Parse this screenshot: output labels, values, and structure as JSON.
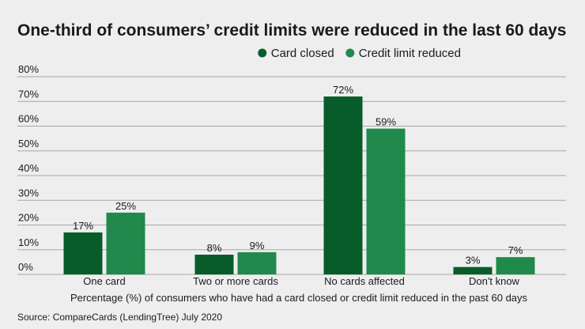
{
  "chart_data": {
    "type": "bar",
    "title": "One-third of consumers’ credit limits were reduced in the last 60 days",
    "categories": [
      "One card",
      "Two or more cards",
      "No cards affected",
      "Don't know"
    ],
    "series": [
      {
        "name": "Card closed",
        "values": [
          17,
          8,
          72,
          3
        ],
        "color": "#075c2a"
      },
      {
        "name": "Credit limit reduced",
        "values": [
          25,
          9,
          59,
          7
        ],
        "color": "#22894c"
      }
    ],
    "data_labels": [
      [
        "17%",
        "8%",
        "72%",
        "3%"
      ],
      [
        "25%",
        "9%",
        "59%",
        "7%"
      ]
    ],
    "ylim": [
      0,
      80
    ],
    "yticks": [
      0,
      10,
      20,
      30,
      40,
      50,
      60,
      70,
      80
    ],
    "ytick_labels": [
      "0%",
      "10%",
      "20%",
      "30%",
      "40%",
      "50%",
      "60%",
      "70%",
      "80%"
    ],
    "xlabel": "Percentage (%) of consumers who have had a card closed or credit limit reduced in the past 60 days",
    "ylabel": "",
    "legend_position": "top-right",
    "grid": true,
    "source": "Source: CompareCards (LendingTree) July 2020"
  }
}
